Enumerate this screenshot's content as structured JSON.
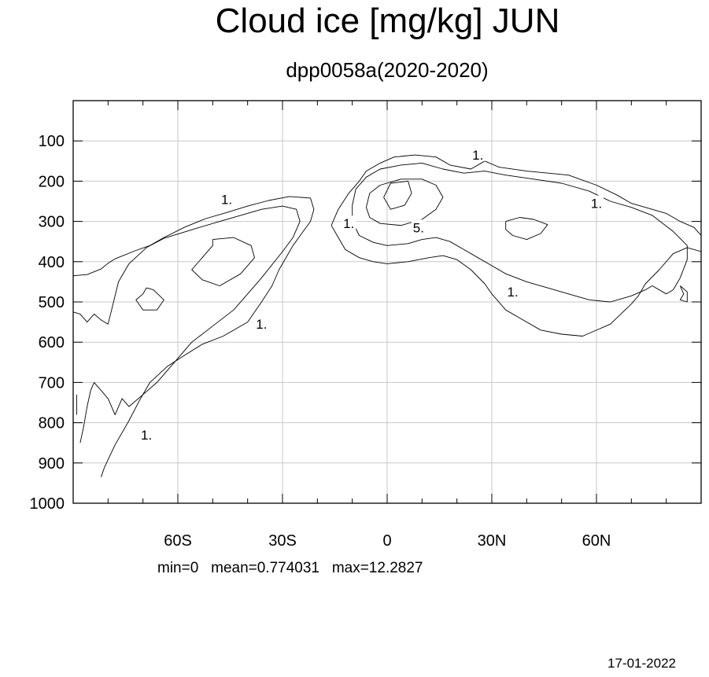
{
  "chart_data": {
    "type": "contour",
    "title": "Cloud ice [mg/kg] JUN",
    "subtitle": "dpp0058a(2020-2020)",
    "xlabel": "",
    "ylabel": "",
    "x_range": [
      -90,
      90
    ],
    "y_range": [
      1000,
      0
    ],
    "x_ticks": [
      {
        "value": -60,
        "label": "60S"
      },
      {
        "value": -30,
        "label": "30S"
      },
      {
        "value": 0,
        "label": "0"
      },
      {
        "value": 30,
        "label": "30N"
      },
      {
        "value": 60,
        "label": "60N"
      }
    ],
    "y_ticks": [
      {
        "value": 100,
        "label": "100"
      },
      {
        "value": 200,
        "label": "200"
      },
      {
        "value": 300,
        "label": "300"
      },
      {
        "value": 400,
        "label": "400"
      },
      {
        "value": 500,
        "label": "500"
      },
      {
        "value": 600,
        "label": "600"
      },
      {
        "value": 700,
        "label": "700"
      },
      {
        "value": 800,
        "label": "800"
      },
      {
        "value": 900,
        "label": "900"
      },
      {
        "value": 1000,
        "label": "1000"
      }
    ],
    "grid": true,
    "contour_levels": [
      1,
      5
    ],
    "contour_labels": [
      {
        "text": "1.",
        "lat": -46,
        "p": 245
      },
      {
        "text": "1.",
        "lat": -36,
        "p": 555
      },
      {
        "text": "1.",
        "lat": -69,
        "p": 830
      },
      {
        "text": "1.",
        "lat": -11,
        "p": 305
      },
      {
        "text": "5.",
        "lat": 9,
        "p": 315
      },
      {
        "text": "1.",
        "lat": 26,
        "p": 135
      },
      {
        "text": "1.",
        "lat": 60,
        "p": 255
      },
      {
        "text": "1.",
        "lat": 36,
        "p": 475
      }
    ],
    "contours": [
      {
        "level": 1,
        "points": [
          [
            -90,
            435
          ],
          [
            -86,
            432
          ],
          [
            -82,
            418
          ],
          [
            -80,
            404
          ],
          [
            -78,
            393
          ],
          [
            -72,
            372
          ],
          [
            -68,
            360
          ],
          [
            -64,
            340
          ],
          [
            -58,
            314
          ],
          [
            -52,
            293
          ],
          [
            -46,
            278
          ],
          [
            -40,
            262
          ],
          [
            -34,
            248
          ],
          [
            -28,
            238
          ],
          [
            -22,
            242
          ],
          [
            -21,
            270
          ],
          [
            -22,
            300
          ],
          [
            -27,
            360
          ],
          [
            -31,
            420
          ],
          [
            -33,
            460
          ],
          [
            -36,
            500
          ],
          [
            -40,
            550
          ],
          [
            -47,
            585
          ],
          [
            -53,
            605
          ],
          [
            -58,
            632
          ],
          [
            -63,
            660
          ],
          [
            -68,
            700
          ],
          [
            -71,
            745
          ],
          [
            -74,
            795
          ],
          [
            -78,
            855
          ],
          [
            -81,
            910
          ],
          [
            -82,
            935
          ]
        ]
      },
      {
        "level": 1,
        "points": [
          [
            -90,
            525
          ],
          [
            -88,
            530
          ],
          [
            -86,
            550
          ],
          [
            -84,
            530
          ],
          [
            -82,
            545
          ],
          [
            -80,
            555
          ],
          [
            -79,
            520
          ],
          [
            -77,
            450
          ],
          [
            -74,
            405
          ],
          [
            -69,
            365
          ],
          [
            -64,
            342
          ],
          [
            -55,
            318
          ],
          [
            -48,
            300
          ],
          [
            -42,
            285
          ],
          [
            -36,
            270
          ],
          [
            -30,
            262
          ],
          [
            -26,
            270
          ],
          [
            -25,
            300
          ],
          [
            -27,
            340
          ],
          [
            -30,
            375
          ],
          [
            -36,
            440
          ],
          [
            -40,
            480
          ],
          [
            -44,
            520
          ],
          [
            -50,
            560
          ],
          [
            -56,
            600
          ],
          [
            -60,
            640
          ],
          [
            -64,
            680
          ],
          [
            -66,
            700
          ],
          [
            -70,
            730
          ],
          [
            -74,
            760
          ],
          [
            -76,
            740
          ],
          [
            -78,
            780
          ],
          [
            -80,
            740
          ],
          [
            -82,
            720
          ],
          [
            -84,
            700
          ],
          [
            -85,
            720
          ],
          [
            -86,
            760
          ],
          [
            -87,
            810
          ],
          [
            -88,
            850
          ]
        ]
      },
      {
        "level": 1,
        "points": [
          [
            -89,
            730
          ],
          [
            -89,
            780
          ]
        ]
      },
      {
        "level": 1,
        "points": [
          [
            -50,
            345
          ],
          [
            -44,
            340
          ],
          [
            -39,
            360
          ],
          [
            -38,
            390
          ],
          [
            -42,
            430
          ],
          [
            -48,
            460
          ],
          [
            -53,
            445
          ],
          [
            -56,
            420
          ],
          [
            -53,
            390
          ],
          [
            -50,
            360
          ],
          [
            -50,
            345
          ]
        ]
      },
      {
        "level": 1,
        "points": [
          [
            -69,
            465
          ],
          [
            -67,
            470
          ],
          [
            -64,
            495
          ],
          [
            -66,
            520
          ],
          [
            -70,
            520
          ],
          [
            -72,
            495
          ],
          [
            -70,
            480
          ],
          [
            -69,
            465
          ]
        ]
      },
      {
        "level": 1,
        "points": [
          [
            -8,
            200
          ],
          [
            -6,
            175
          ],
          [
            -2,
            155
          ],
          [
            2,
            140
          ],
          [
            8,
            135
          ],
          [
            14,
            140
          ],
          [
            18,
            160
          ],
          [
            24,
            170
          ],
          [
            28,
            150
          ],
          [
            32,
            165
          ],
          [
            40,
            175
          ],
          [
            52,
            185
          ],
          [
            60,
            210
          ],
          [
            66,
            235
          ],
          [
            70,
            255
          ],
          [
            74,
            265
          ],
          [
            80,
            280
          ],
          [
            84,
            300
          ],
          [
            88,
            315
          ],
          [
            90,
            335
          ],
          [
            90,
            375
          ],
          [
            86,
            365
          ],
          [
            82,
            380
          ],
          [
            78,
            420
          ],
          [
            74,
            455
          ],
          [
            72,
            485
          ],
          [
            70,
            505
          ],
          [
            64,
            555
          ],
          [
            56,
            585
          ],
          [
            50,
            580
          ],
          [
            44,
            570
          ],
          [
            38,
            540
          ],
          [
            34,
            520
          ],
          [
            30,
            480
          ],
          [
            28,
            455
          ],
          [
            24,
            420
          ],
          [
            20,
            395
          ],
          [
            16,
            385
          ],
          [
            12,
            390
          ],
          [
            6,
            400
          ],
          [
            0,
            405
          ],
          [
            -4,
            400
          ],
          [
            -8,
            390
          ],
          [
            -12,
            370
          ],
          [
            -14,
            340
          ],
          [
            -16,
            310
          ],
          [
            -14,
            270
          ],
          [
            -11,
            230
          ],
          [
            -8,
            200
          ]
        ]
      },
      {
        "level": 1,
        "points": [
          [
            -9,
            220
          ],
          [
            -6,
            190
          ],
          [
            -2,
            170
          ],
          [
            4,
            160
          ],
          [
            10,
            155
          ],
          [
            16,
            170
          ],
          [
            22,
            180
          ],
          [
            28,
            175
          ],
          [
            34,
            185
          ],
          [
            42,
            195
          ],
          [
            50,
            205
          ],
          [
            58,
            225
          ],
          [
            64,
            250
          ],
          [
            70,
            265
          ],
          [
            76,
            285
          ],
          [
            82,
            325
          ],
          [
            86,
            360
          ],
          [
            86,
            395
          ],
          [
            84,
            440
          ],
          [
            82,
            470
          ],
          [
            80,
            480
          ],
          [
            76,
            460
          ],
          [
            74,
            470
          ],
          [
            70,
            485
          ],
          [
            64,
            500
          ],
          [
            58,
            495
          ],
          [
            52,
            480
          ],
          [
            46,
            465
          ],
          [
            40,
            450
          ],
          [
            34,
            430
          ],
          [
            30,
            410
          ],
          [
            26,
            390
          ],
          [
            22,
            370
          ],
          [
            18,
            350
          ],
          [
            14,
            340
          ],
          [
            10,
            345
          ],
          [
            6,
            355
          ],
          [
            0,
            360
          ],
          [
            -4,
            352
          ],
          [
            -8,
            335
          ],
          [
            -10,
            300
          ],
          [
            -10,
            260
          ],
          [
            -9,
            220
          ]
        ]
      },
      {
        "level": 1,
        "points": [
          [
            84,
            460
          ],
          [
            85,
            480
          ],
          [
            84,
            495
          ],
          [
            86,
            500
          ],
          [
            86,
            475
          ],
          [
            84,
            460
          ]
        ]
      },
      {
        "level": 5,
        "points": [
          [
            -6,
            265
          ],
          [
            -5,
            230
          ],
          [
            -2,
            210
          ],
          [
            4,
            195
          ],
          [
            10,
            195
          ],
          [
            14,
            210
          ],
          [
            16,
            240
          ],
          [
            14,
            270
          ],
          [
            10,
            295
          ],
          [
            4,
            310
          ],
          [
            -2,
            305
          ],
          [
            -5,
            290
          ],
          [
            -6,
            265
          ]
        ]
      },
      {
        "level": 5,
        "points": [
          [
            -1,
            240
          ],
          [
            1,
            205
          ],
          [
            6,
            200
          ],
          [
            7,
            230
          ],
          [
            5,
            260
          ],
          [
            1,
            270
          ],
          [
            -1,
            240
          ]
        ]
      },
      {
        "level": 1,
        "points": [
          [
            34,
            300
          ],
          [
            38,
            290
          ],
          [
            42,
            295
          ],
          [
            46,
            308
          ],
          [
            44,
            330
          ],
          [
            40,
            345
          ],
          [
            36,
            335
          ],
          [
            34,
            320
          ],
          [
            34,
            300
          ]
        ]
      }
    ]
  },
  "stats_text": "min=0   mean=0.774031   max=12.2827",
  "date": "17-01-2022"
}
